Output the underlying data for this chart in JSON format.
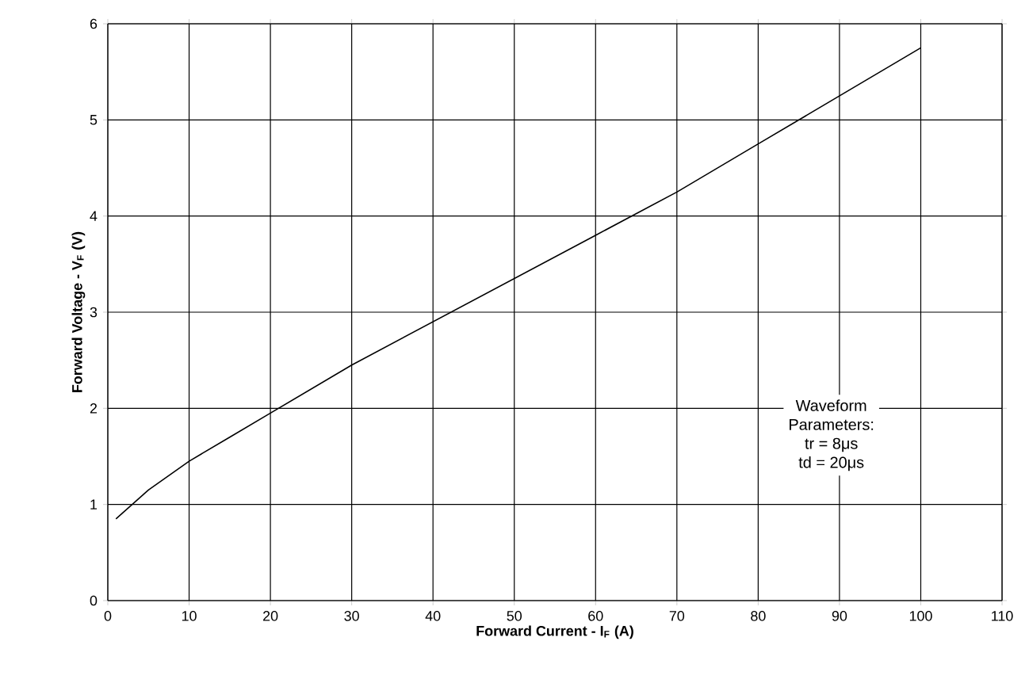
{
  "chart_data": {
    "type": "line",
    "xlabel": "**Forward Current - I$_{F}$ (A)**",
    "ylabel": "**Forward Voltage - V$_{F}$ (V)**",
    "x": [
      1,
      5,
      10,
      15,
      20,
      30,
      40,
      50,
      60,
      70,
      80,
      90,
      100
    ],
    "series": [
      {
        "color": "#000000",
        "values": [
          0.85,
          1.15,
          1.45,
          1.7,
          1.95,
          2.45,
          2.9,
          3.35,
          3.8,
          4.25,
          4.75,
          5.25,
          5.75
        ]
      }
    ],
    "xlim": [
      0,
      110
    ],
    "ylim": [
      0,
      6
    ],
    "xticks": [
      0,
      10,
      20,
      30,
      40,
      50,
      60,
      70,
      80,
      90,
      100,
      110
    ],
    "yticks": [
      0,
      1,
      2,
      3,
      4,
      5,
      6
    ],
    "grid": true,
    "marker": "none",
    "line_style": "solid",
    "annotations": [
      "Waveform",
      "Parameters:",
      "tr = 8μs",
      "td = 20μs"
    ]
  }
}
